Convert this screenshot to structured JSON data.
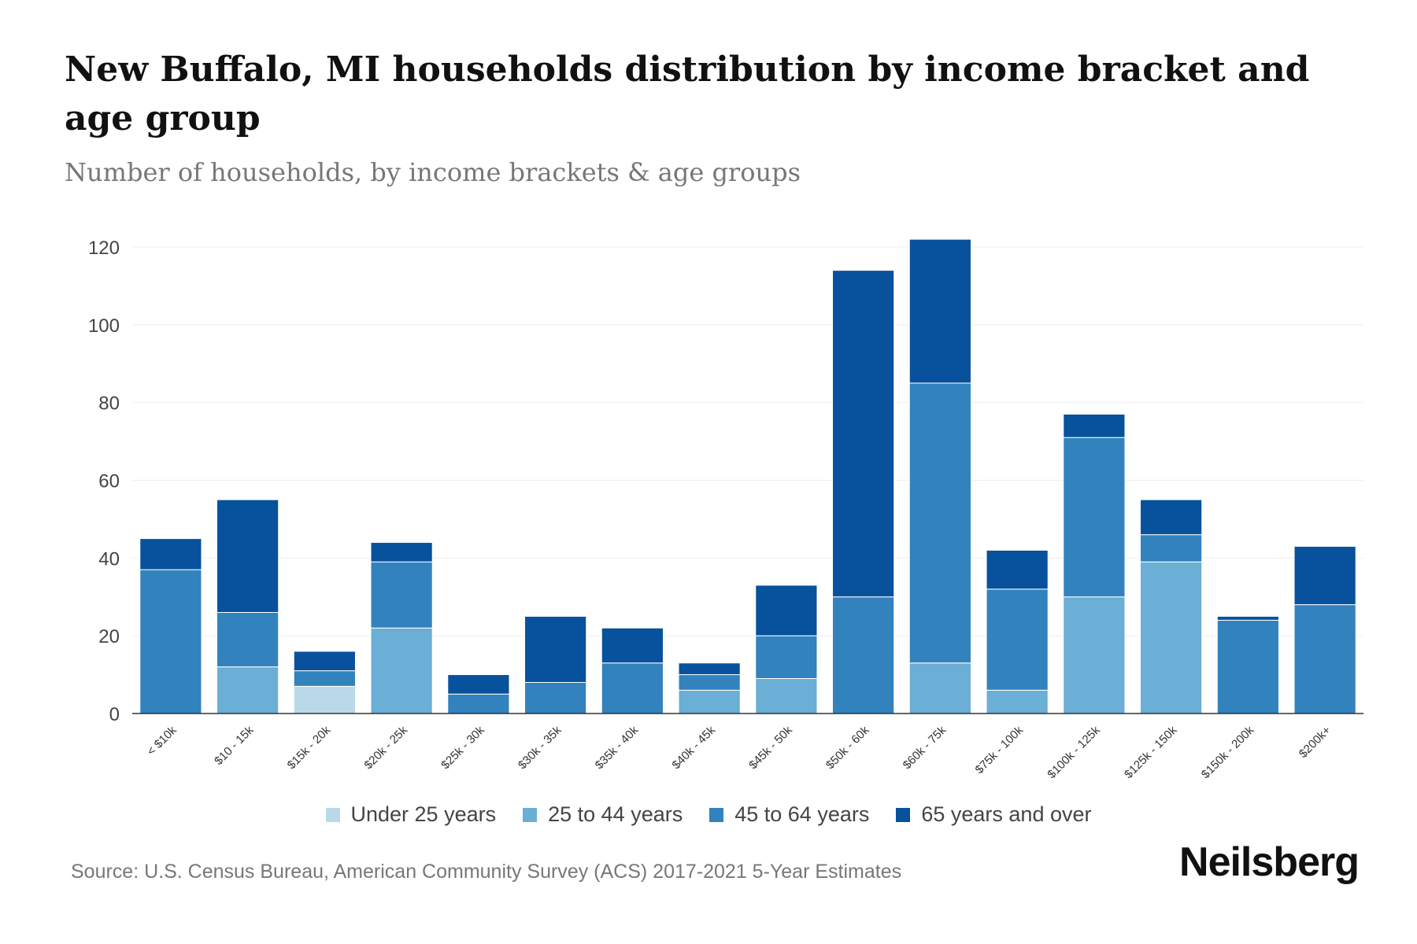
{
  "title": "New Buffalo, MI households distribution by income bracket and age group",
  "subtitle": "Number of households, by income brackets & age groups",
  "source": "Source: U.S. Census Bureau, American Community Survey (ACS) 2017-2021 5-Year Estimates",
  "logo": "Neilsberg",
  "chart_data": {
    "type": "bar",
    "stacked": true,
    "title": "New Buffalo, MI households distribution by income bracket and age group",
    "xlabel": "",
    "ylabel": "",
    "ylim": [
      0,
      120
    ],
    "yticks": [
      0,
      20,
      40,
      60,
      80,
      100,
      120
    ],
    "grid": true,
    "legend_position": "bottom",
    "categories": [
      "< $10k",
      "$10 - 15k",
      "$15k - 20k",
      "$20k - 25k",
      "$25k - 30k",
      "$30k - 35k",
      "$35k - 40k",
      "$40k - 45k",
      "$45k - 50k",
      "$50k - 60k",
      "$60k - 75k",
      "$75k - 100k",
      "$100k - 125k",
      "$125k - 150k",
      "$150k - 200k",
      "$200k+"
    ],
    "series": [
      {
        "name": "Under 25 years",
        "color": "#b9d9e9",
        "values": [
          0,
          0,
          7,
          0,
          0,
          0,
          0,
          0,
          0,
          0,
          0,
          0,
          0,
          0,
          0,
          0
        ]
      },
      {
        "name": "25 to 44 years",
        "color": "#6baed6",
        "values": [
          0,
          12,
          0,
          22,
          0,
          0,
          0,
          6,
          9,
          0,
          13,
          6,
          30,
          39,
          0,
          0
        ]
      },
      {
        "name": "45 to 64 years",
        "color": "#3282bd",
        "values": [
          37,
          14,
          4,
          17,
          5,
          8,
          13,
          4,
          11,
          30,
          72,
          26,
          41,
          7,
          24,
          28
        ]
      },
      {
        "name": "65 years and over",
        "color": "#08519c",
        "values": [
          8,
          29,
          5,
          5,
          5,
          17,
          9,
          3,
          13,
          84,
          37,
          10,
          6,
          9,
          1,
          15
        ]
      }
    ]
  }
}
